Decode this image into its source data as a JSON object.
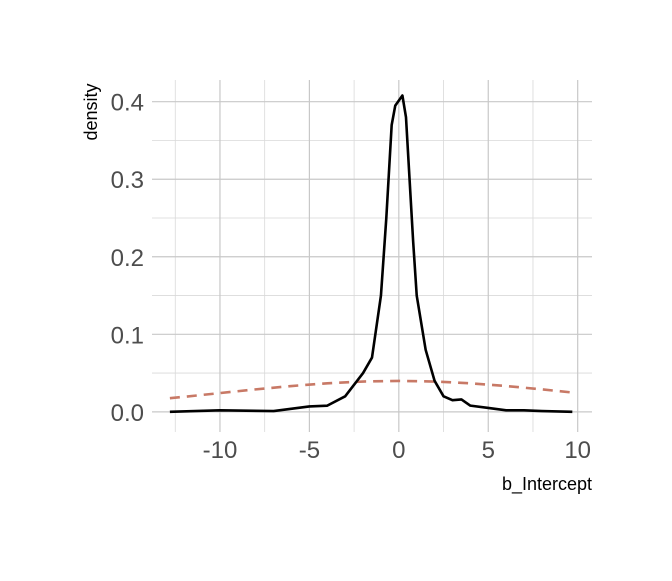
{
  "chart_data": {
    "type": "line",
    "xlabel": "b_Intercept",
    "ylabel": "density",
    "series": [
      {
        "color": "#000000",
        "dash": false,
        "x": [
          -12.8,
          -10,
          -7,
          -5,
          -4,
          -3,
          -2.5,
          -2,
          -1.5,
          -1,
          -0.7,
          -0.4,
          -0.2,
          0.2,
          0.4,
          0.6,
          0.8,
          1,
          1.5,
          2,
          2.5,
          3,
          3.5,
          4,
          5,
          6,
          7,
          8,
          9.7
        ],
        "values": [
          0.0,
          0.002,
          0.001,
          0.007,
          0.008,
          0.02,
          0.035,
          0.05,
          0.07,
          0.15,
          0.25,
          0.37,
          0.395,
          0.408,
          0.38,
          0.3,
          0.22,
          0.15,
          0.08,
          0.04,
          0.02,
          0.015,
          0.016,
          0.008,
          0.005,
          0.002,
          0.002,
          0.001,
          0.0
        ]
      },
      {
        "color": "#c87966",
        "dash": true,
        "x": [
          -12.8,
          -12,
          -10,
          -8,
          -6,
          -4,
          -2,
          0,
          2,
          4,
          6,
          8,
          9.7
        ],
        "values": [
          0.0176,
          0.0194,
          0.0242,
          0.029,
          0.0333,
          0.0368,
          0.0391,
          0.0399,
          0.0391,
          0.0368,
          0.0333,
          0.029,
          0.0249
        ]
      }
    ],
    "xlim": [
      -13.8,
      10.8
    ],
    "ylim": [
      -0.026,
      0.428
    ],
    "xticks": [
      -10,
      -5,
      0,
      5,
      10
    ],
    "yticks": [
      {
        "value": 0,
        "label": "0.0"
      },
      0.1,
      0.2,
      0.3,
      0.4
    ],
    "minor_xticks": [
      -12.5,
      -7.5,
      -2.5,
      2.5,
      7.5
    ],
    "minor_yticks": [
      0.05,
      0.15,
      0.25,
      0.35
    ],
    "grid": true
  }
}
